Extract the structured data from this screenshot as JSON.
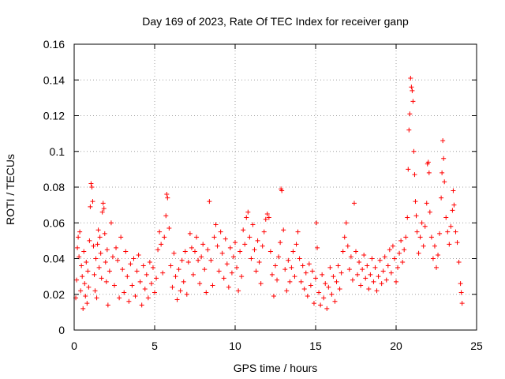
{
  "chart_data": {
    "type": "scatter",
    "title": "Day 169 of 2023, Rate Of TEC Index for receiver ganp",
    "xlabel": "GPS time / hours",
    "ylabel": "ROTI / TECUs",
    "xlim": [
      0,
      25
    ],
    "ylim": [
      0,
      0.16
    ],
    "xticks": [
      0,
      5,
      10,
      15,
      20,
      25
    ],
    "xtick_labels": [
      "0",
      "5",
      "10",
      "15",
      "20",
      "25"
    ],
    "yticks": [
      0,
      0.02,
      0.04,
      0.06,
      0.08,
      0.1,
      0.12,
      0.14,
      0.16
    ],
    "ytick_labels": [
      "0",
      "0.02",
      "0.04",
      "0.06",
      "0.08",
      "0.1",
      "0.12",
      "0.14",
      "0.16"
    ],
    "grid": true,
    "marker": "+",
    "series_color": "#ff0000",
    "series": [
      {
        "name": "ROTI",
        "points": [
          [
            0.1,
            0.018
          ],
          [
            0.15,
            0.028
          ],
          [
            0.2,
            0.046
          ],
          [
            0.25,
            0.052
          ],
          [
            0.3,
            0.041
          ],
          [
            0.35,
            0.055
          ],
          [
            0.4,
            0.022
          ],
          [
            0.45,
            0.036
          ],
          [
            0.5,
            0.03
          ],
          [
            0.55,
            0.012
          ],
          [
            0.6,
            0.044
          ],
          [
            0.65,
            0.026
          ],
          [
            0.7,
            0.019
          ],
          [
            0.75,
            0.038
          ],
          [
            0.8,
            0.015
          ],
          [
            0.85,
            0.033
          ],
          [
            0.9,
            0.024
          ],
          [
            0.95,
            0.05
          ],
          [
            1.0,
            0.069
          ],
          [
            1.05,
            0.082
          ],
          [
            1.1,
            0.08
          ],
          [
            1.15,
            0.072
          ],
          [
            1.2,
            0.047
          ],
          [
            1.25,
            0.031
          ],
          [
            1.3,
            0.022
          ],
          [
            1.35,
            0.04
          ],
          [
            1.4,
            0.018
          ],
          [
            1.45,
            0.048
          ],
          [
            1.5,
            0.056
          ],
          [
            1.55,
            0.035
          ],
          [
            1.6,
            0.052
          ],
          [
            1.65,
            0.043
          ],
          [
            1.7,
            0.029
          ],
          [
            1.75,
            0.066
          ],
          [
            1.8,
            0.071
          ],
          [
            1.85,
            0.068
          ],
          [
            1.9,
            0.054
          ],
          [
            1.95,
            0.038
          ],
          [
            2.0,
            0.027
          ],
          [
            2.05,
            0.045
          ],
          [
            2.1,
            0.014
          ],
          [
            2.2,
            0.033
          ],
          [
            2.3,
            0.06
          ],
          [
            2.4,
            0.041
          ],
          [
            2.5,
            0.025
          ],
          [
            2.6,
            0.046
          ],
          [
            2.7,
            0.039
          ],
          [
            2.8,
            0.018
          ],
          [
            2.9,
            0.052
          ],
          [
            3.0,
            0.034
          ],
          [
            3.1,
            0.021
          ],
          [
            3.2,
            0.044
          ],
          [
            3.3,
            0.03
          ],
          [
            3.4,
            0.016
          ],
          [
            3.5,
            0.037
          ],
          [
            3.6,
            0.025
          ],
          [
            3.7,
            0.04
          ],
          [
            3.8,
            0.019
          ],
          [
            3.9,
            0.033
          ],
          [
            4.0,
            0.042
          ],
          [
            4.1,
            0.027
          ],
          [
            4.2,
            0.014
          ],
          [
            4.3,
            0.036
          ],
          [
            4.4,
            0.023
          ],
          [
            4.5,
            0.031
          ],
          [
            4.6,
            0.018
          ],
          [
            4.7,
            0.038
          ],
          [
            4.8,
            0.026
          ],
          [
            4.9,
            0.035
          ],
          [
            5.0,
            0.021
          ],
          [
            5.1,
            0.029
          ],
          [
            5.2,
            0.045
          ],
          [
            5.3,
            0.055
          ],
          [
            5.4,
            0.048
          ],
          [
            5.5,
            0.032
          ],
          [
            5.6,
            0.052
          ],
          [
            5.7,
            0.064
          ],
          [
            5.75,
            0.076
          ],
          [
            5.8,
            0.074
          ],
          [
            5.9,
            0.057
          ],
          [
            6.0,
            0.036
          ],
          [
            6.1,
            0.024
          ],
          [
            6.2,
            0.043
          ],
          [
            6.3,
            0.03
          ],
          [
            6.4,
            0.017
          ],
          [
            6.5,
            0.034
          ],
          [
            6.6,
            0.022
          ],
          [
            6.7,
            0.039
          ],
          [
            6.8,
            0.027
          ],
          [
            6.9,
            0.044
          ],
          [
            7.0,
            0.02
          ],
          [
            7.1,
            0.038
          ],
          [
            7.2,
            0.054
          ],
          [
            7.3,
            0.046
          ],
          [
            7.4,
            0.031
          ],
          [
            7.5,
            0.044
          ],
          [
            7.6,
            0.052
          ],
          [
            7.7,
            0.039
          ],
          [
            7.8,
            0.026
          ],
          [
            7.9,
            0.041
          ],
          [
            8.0,
            0.048
          ],
          [
            8.1,
            0.034
          ],
          [
            8.2,
            0.021
          ],
          [
            8.3,
            0.045
          ],
          [
            8.4,
            0.072
          ],
          [
            8.5,
            0.039
          ],
          [
            8.6,
            0.025
          ],
          [
            8.7,
            0.052
          ],
          [
            8.8,
            0.059
          ],
          [
            8.9,
            0.047
          ],
          [
            9.0,
            0.033
          ],
          [
            9.1,
            0.055
          ],
          [
            9.2,
            0.043
          ],
          [
            9.3,
            0.029
          ],
          [
            9.4,
            0.051
          ],
          [
            9.5,
            0.037
          ],
          [
            9.6,
            0.024
          ],
          [
            9.7,
            0.046
          ],
          [
            9.8,
            0.032
          ],
          [
            9.9,
            0.041
          ],
          [
            10.0,
            0.049
          ],
          [
            10.1,
            0.035
          ],
          [
            10.2,
            0.022
          ],
          [
            10.3,
            0.044
          ],
          [
            10.4,
            0.03
          ],
          [
            10.5,
            0.056
          ],
          [
            10.6,
            0.048
          ],
          [
            10.7,
            0.063
          ],
          [
            10.8,
            0.066
          ],
          [
            10.9,
            0.052
          ],
          [
            11.0,
            0.04
          ],
          [
            11.1,
            0.059
          ],
          [
            11.2,
            0.045
          ],
          [
            11.3,
            0.033
          ],
          [
            11.4,
            0.05
          ],
          [
            11.5,
            0.038
          ],
          [
            11.6,
            0.026
          ],
          [
            11.7,
            0.047
          ],
          [
            11.8,
            0.055
          ],
          [
            11.9,
            0.062
          ],
          [
            12.0,
            0.065
          ],
          [
            12.1,
            0.063
          ],
          [
            12.2,
            0.044
          ],
          [
            12.3,
            0.031
          ],
          [
            12.4,
            0.019
          ],
          [
            12.5,
            0.036
          ],
          [
            12.6,
            0.028
          ],
          [
            12.7,
            0.041
          ],
          [
            12.8,
            0.049
          ],
          [
            12.85,
            0.079
          ],
          [
            12.9,
            0.078
          ],
          [
            13.0,
            0.056
          ],
          [
            13.1,
            0.034
          ],
          [
            13.2,
            0.022
          ],
          [
            13.3,
            0.039
          ],
          [
            13.4,
            0.027
          ],
          [
            13.5,
            0.035
          ],
          [
            13.6,
            0.044
          ],
          [
            13.7,
            0.03
          ],
          [
            13.8,
            0.048
          ],
          [
            13.9,
            0.055
          ],
          [
            14.0,
            0.04
          ],
          [
            14.1,
            0.027
          ],
          [
            14.2,
            0.036
          ],
          [
            14.3,
            0.023
          ],
          [
            14.4,
            0.032
          ],
          [
            14.5,
            0.019
          ],
          [
            14.6,
            0.037
          ],
          [
            14.7,
            0.025
          ],
          [
            14.8,
            0.033
          ],
          [
            14.9,
            0.015
          ],
          [
            15.0,
            0.029
          ],
          [
            15.05,
            0.06
          ],
          [
            15.1,
            0.046
          ],
          [
            15.2,
            0.021
          ],
          [
            15.3,
            0.014
          ],
          [
            15.4,
            0.031
          ],
          [
            15.5,
            0.018
          ],
          [
            15.6,
            0.026
          ],
          [
            15.7,
            0.012
          ],
          [
            15.8,
            0.024
          ],
          [
            15.9,
            0.035
          ],
          [
            16.0,
            0.02
          ],
          [
            16.1,
            0.03
          ],
          [
            16.2,
            0.016
          ],
          [
            16.3,
            0.027
          ],
          [
            16.4,
            0.036
          ],
          [
            16.5,
            0.023
          ],
          [
            16.6,
            0.032
          ],
          [
            16.7,
            0.044
          ],
          [
            16.8,
            0.052
          ],
          [
            16.9,
            0.06
          ],
          [
            17.0,
            0.047
          ],
          [
            17.1,
            0.034
          ],
          [
            17.2,
            0.041
          ],
          [
            17.3,
            0.028
          ],
          [
            17.4,
            0.071
          ],
          [
            17.5,
            0.044
          ],
          [
            17.6,
            0.031
          ],
          [
            17.7,
            0.038
          ],
          [
            17.8,
            0.025
          ],
          [
            17.9,
            0.034
          ],
          [
            18.0,
            0.042
          ],
          [
            18.1,
            0.029
          ],
          [
            18.2,
            0.036
          ],
          [
            18.3,
            0.023
          ],
          [
            18.4,
            0.031
          ],
          [
            18.5,
            0.04
          ],
          [
            18.6,
            0.027
          ],
          [
            18.7,
            0.035
          ],
          [
            18.8,
            0.022
          ],
          [
            18.9,
            0.03
          ],
          [
            19.0,
            0.039
          ],
          [
            19.1,
            0.026
          ],
          [
            19.2,
            0.033
          ],
          [
            19.3,
            0.041
          ],
          [
            19.4,
            0.028
          ],
          [
            19.5,
            0.036
          ],
          [
            19.6,
            0.045
          ],
          [
            19.7,
            0.032
          ],
          [
            19.8,
            0.047
          ],
          [
            19.9,
            0.04
          ],
          [
            20.0,
            0.027
          ],
          [
            20.1,
            0.035
          ],
          [
            20.2,
            0.043
          ],
          [
            20.3,
            0.05
          ],
          [
            20.4,
            0.038
          ],
          [
            20.5,
            0.045
          ],
          [
            20.6,
            0.052
          ],
          [
            20.7,
            0.063
          ],
          [
            20.75,
            0.09
          ],
          [
            20.8,
            0.112
          ],
          [
            20.85,
            0.121
          ],
          [
            20.9,
            0.141
          ],
          [
            20.95,
            0.136
          ],
          [
            21.0,
            0.134
          ],
          [
            21.05,
            0.128
          ],
          [
            21.1,
            0.1
          ],
          [
            21.15,
            0.087
          ],
          [
            21.2,
            0.072
          ],
          [
            21.25,
            0.064
          ],
          [
            21.3,
            0.055
          ],
          [
            21.4,
            0.043
          ],
          [
            21.5,
            0.052
          ],
          [
            21.6,
            0.06
          ],
          [
            21.7,
            0.047
          ],
          [
            21.8,
            0.058
          ],
          [
            21.9,
            0.071
          ],
          [
            21.95,
            0.093
          ],
          [
            22.0,
            0.094
          ],
          [
            22.05,
            0.088
          ],
          [
            22.1,
            0.066
          ],
          [
            22.2,
            0.052
          ],
          [
            22.3,
            0.04
          ],
          [
            22.4,
            0.047
          ],
          [
            22.5,
            0.035
          ],
          [
            22.6,
            0.042
          ],
          [
            22.7,
            0.054
          ],
          [
            22.8,
            0.074
          ],
          [
            22.85,
            0.088
          ],
          [
            22.9,
            0.106
          ],
          [
            22.95,
            0.096
          ],
          [
            23.0,
            0.083
          ],
          [
            23.1,
            0.063
          ],
          [
            23.2,
            0.055
          ],
          [
            23.3,
            0.048
          ],
          [
            23.4,
            0.058
          ],
          [
            23.5,
            0.067
          ],
          [
            23.55,
            0.078
          ],
          [
            23.6,
            0.07
          ],
          [
            23.7,
            0.055
          ],
          [
            23.8,
            0.049
          ],
          [
            23.9,
            0.038
          ],
          [
            24.0,
            0.026
          ],
          [
            24.05,
            0.021
          ],
          [
            24.1,
            0.015
          ]
        ]
      }
    ]
  }
}
